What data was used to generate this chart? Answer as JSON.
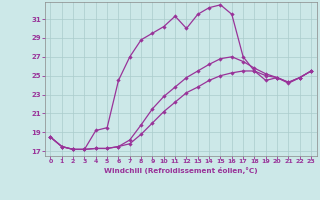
{
  "xlabel": "Windchill (Refroidissement éolien,°C)",
  "bg_color": "#cce8e8",
  "line_color": "#993399",
  "grid_color": "#aacccc",
  "xlim": [
    -0.5,
    23.5
  ],
  "ylim": [
    16.5,
    32.8
  ],
  "yticks": [
    17,
    19,
    21,
    23,
    25,
    27,
    29,
    31
  ],
  "xticks": [
    0,
    1,
    2,
    3,
    4,
    5,
    6,
    7,
    8,
    9,
    10,
    11,
    12,
    13,
    14,
    15,
    16,
    17,
    18,
    19,
    20,
    21,
    22,
    23
  ],
  "line_peak_x": [
    0,
    1,
    2,
    3,
    4,
    5,
    6,
    7,
    8,
    9,
    10,
    11,
    12,
    13,
    14,
    15,
    16,
    17,
    18,
    19,
    20,
    21,
    22,
    23
  ],
  "line_peak_y": [
    18.5,
    17.5,
    17.2,
    17.2,
    19.2,
    19.5,
    24.5,
    27.0,
    28.8,
    29.5,
    30.2,
    31.3,
    30.0,
    31.5,
    32.2,
    32.5,
    31.5,
    27.0,
    25.5,
    24.5,
    24.8,
    24.2,
    24.8,
    25.5
  ],
  "line_mid_x": [
    0,
    1,
    2,
    3,
    4,
    5,
    6,
    7,
    8,
    9,
    10,
    11,
    12,
    13,
    14,
    15,
    16,
    17,
    18,
    19,
    20,
    21,
    22,
    23
  ],
  "line_mid_y": [
    18.5,
    17.5,
    17.2,
    17.2,
    17.3,
    17.3,
    17.5,
    18.2,
    19.8,
    21.5,
    22.8,
    23.8,
    24.8,
    25.5,
    26.2,
    26.8,
    27.0,
    26.5,
    25.8,
    25.2,
    24.8,
    24.3,
    24.8,
    25.5
  ],
  "line_low_x": [
    0,
    1,
    2,
    3,
    4,
    5,
    6,
    7,
    8,
    9,
    10,
    11,
    12,
    13,
    14,
    15,
    16,
    17,
    18,
    19,
    20,
    21,
    22,
    23
  ],
  "line_low_y": [
    18.5,
    17.5,
    17.2,
    17.2,
    17.3,
    17.3,
    17.5,
    17.8,
    18.8,
    20.0,
    21.2,
    22.2,
    23.2,
    23.8,
    24.5,
    25.0,
    25.3,
    25.5,
    25.5,
    25.0,
    24.8,
    24.3,
    24.8,
    25.5
  ]
}
